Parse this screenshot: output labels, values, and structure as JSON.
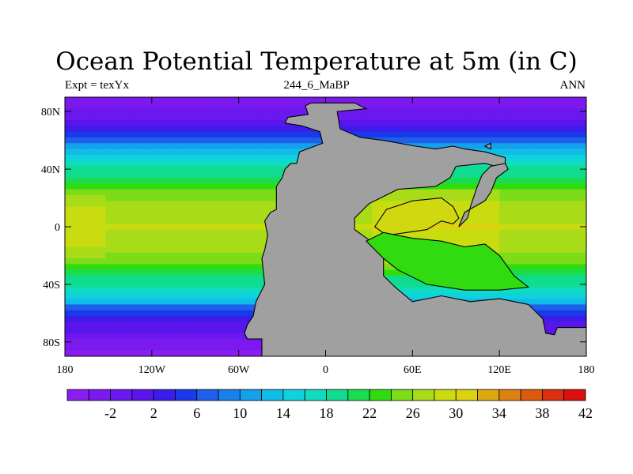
{
  "chart_data": {
    "type": "heatmap",
    "title": "Ocean Potential Temperature at 5m (in C)",
    "left_string": "Expt = texYx",
    "center_string": "244_6_MaBP",
    "right_string": "ANN",
    "x_ticks": [
      "180",
      "120W",
      "60W",
      "0",
      "60E",
      "120E",
      "180"
    ],
    "x_tick_values": [
      -180,
      -120,
      -60,
      0,
      60,
      120,
      180
    ],
    "y_ticks": [
      "80N",
      "40N",
      "0",
      "40S",
      "80S"
    ],
    "y_tick_values": [
      80,
      40,
      0,
      -40,
      -80
    ],
    "xlim": [
      -180,
      180
    ],
    "ylim": [
      -90,
      90
    ],
    "land_color": "#a0a0a0",
    "colorbar": {
      "levels": [
        -4,
        -2,
        0,
        2,
        4,
        6,
        8,
        10,
        12,
        14,
        16,
        18,
        20,
        22,
        24,
        26,
        28,
        30,
        32,
        34,
        36,
        38,
        40,
        42
      ],
      "labels": [
        "-2",
        "2",
        "6",
        "10",
        "14",
        "18",
        "22",
        "26",
        "30",
        "34",
        "38",
        "42"
      ],
      "label_values": [
        -2,
        2,
        6,
        10,
        14,
        18,
        22,
        26,
        30,
        34,
        38,
        42
      ],
      "colors": [
        "#8a1ef0",
        "#7b19ef",
        "#6a18ee",
        "#5a14ec",
        "#3c1ceb",
        "#1a3aea",
        "#1e60ea",
        "#1a80ea",
        "#14a0ea",
        "#10bce8",
        "#10d2dd",
        "#10dcc0",
        "#10dc90",
        "#1adc50",
        "#30dc10",
        "#7cdc18",
        "#a8dc18",
        "#c8dc10",
        "#dcd210",
        "#dcaa10",
        "#dc8210",
        "#dc5a10",
        "#dc3010",
        "#dc1010"
      ]
    }
  }
}
